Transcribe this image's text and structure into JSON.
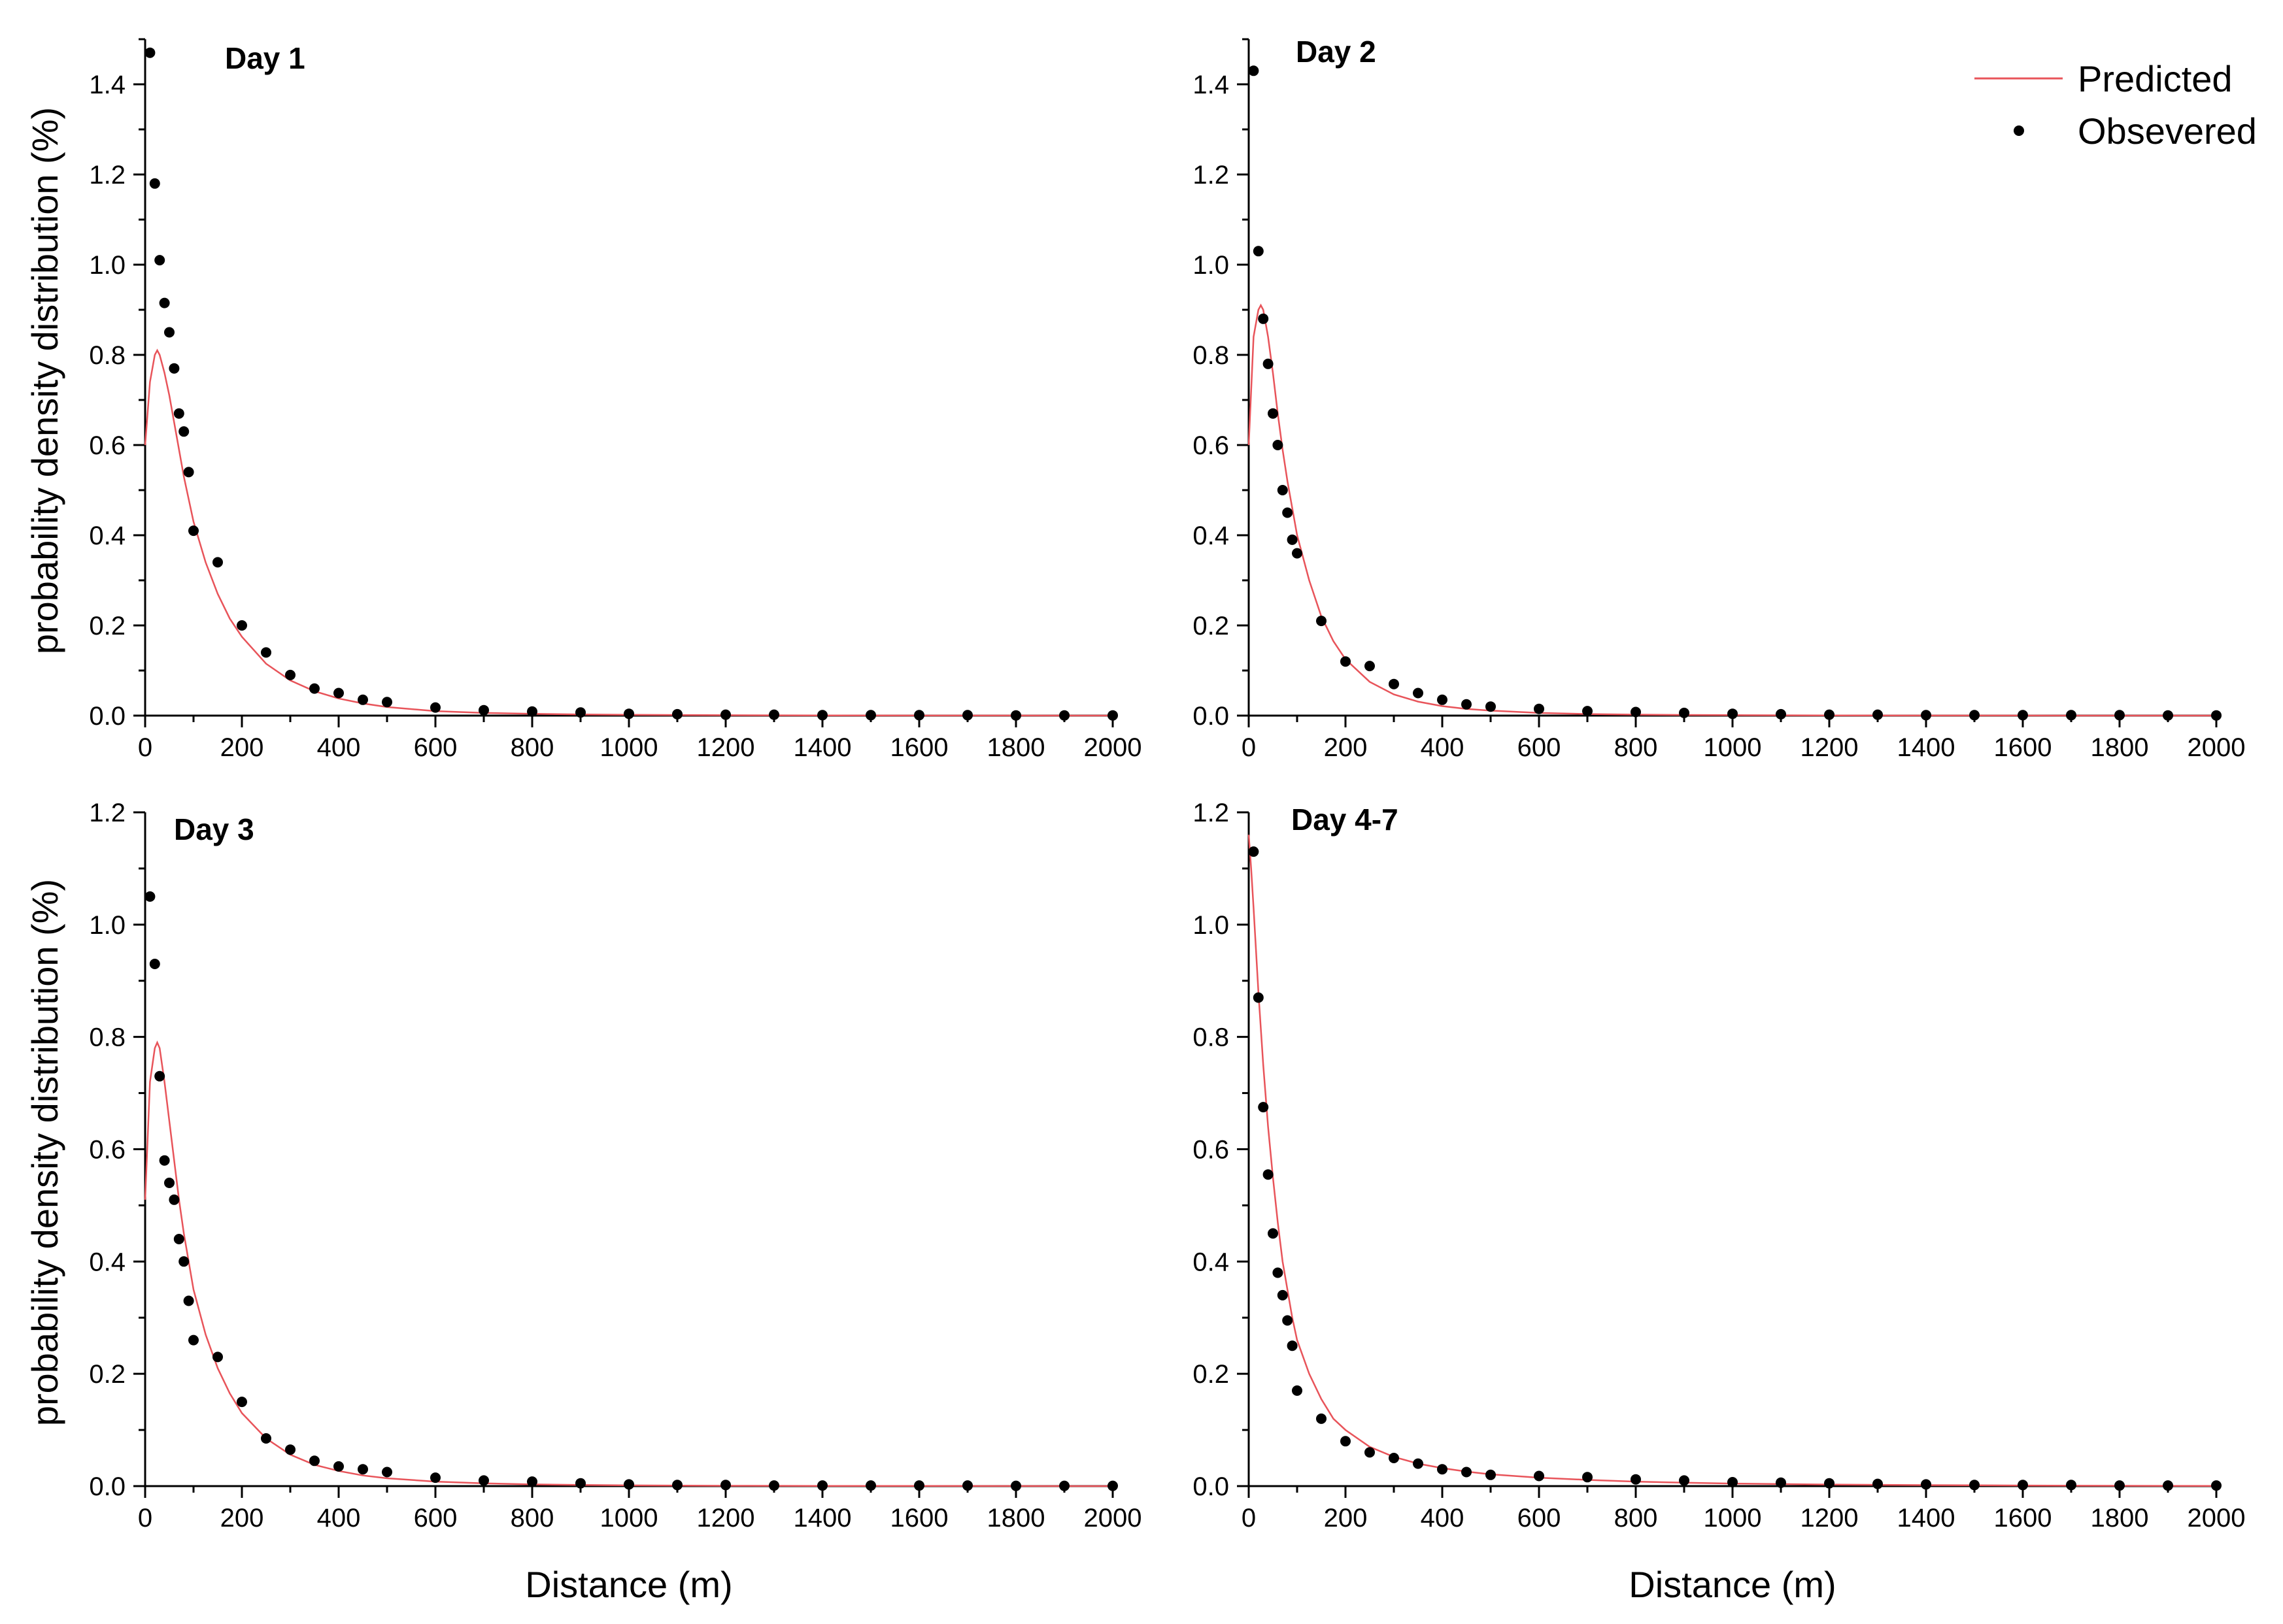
{
  "figure": {
    "legend": {
      "predicted_label": "Predicted",
      "observed_label": "Obsevered",
      "placement": "top-right of Day 2 panel"
    },
    "shared_ylabel": "probability density distribution (%)",
    "shared_xlabel": "Distance (m)"
  },
  "colors": {
    "predicted_line": "#e8545a",
    "observed_point": "#000000",
    "axis": "#000000"
  },
  "chart_data": [
    {
      "type": "scatter",
      "panel_label": "Day 1",
      "xlabel": "",
      "ylabel": "probability density distribution (%)",
      "xlim": [
        0,
        2000
      ],
      "ylim": [
        0,
        1.5
      ],
      "x_ticks": [
        0,
        200,
        400,
        600,
        800,
        1000,
        1200,
        1400,
        1600,
        1800,
        2000
      ],
      "y_ticks": [
        0.0,
        0.2,
        0.4,
        0.6,
        0.8,
        1.0,
        1.2,
        1.4
      ],
      "y_tick_labels": [
        "0.0",
        "0.2",
        "0.4",
        "0.6",
        "0.8",
        "1.0",
        "1.2",
        "1.4"
      ],
      "grid": false,
      "series": [
        {
          "name": "Predicted",
          "type": "line",
          "x": [
            0,
            10,
            20,
            25,
            30,
            40,
            50,
            60,
            70,
            80,
            90,
            100,
            125,
            150,
            175,
            200,
            250,
            300,
            350,
            400,
            450,
            500,
            600,
            700,
            800,
            900,
            1000,
            1200,
            1400,
            1600,
            1800,
            2000
          ],
          "y": [
            0.6,
            0.74,
            0.8,
            0.81,
            0.8,
            0.76,
            0.71,
            0.65,
            0.59,
            0.53,
            0.48,
            0.43,
            0.34,
            0.27,
            0.215,
            0.175,
            0.115,
            0.078,
            0.054,
            0.038,
            0.027,
            0.019,
            0.01,
            0.006,
            0.004,
            0.0025,
            0.0017,
            0.0008,
            0.0004,
            0.0002,
            0.0001,
            0.0
          ]
        },
        {
          "name": "Obsevered",
          "type": "scatter",
          "x": [
            10,
            20,
            30,
            40,
            50,
            60,
            70,
            80,
            90,
            100,
            150,
            200,
            250,
            300,
            350,
            400,
            450,
            500,
            600,
            700,
            800,
            900,
            1000,
            1100,
            1200,
            1300,
            1400,
            1500,
            1600,
            1700,
            1800,
            1900,
            2000
          ],
          "y": [
            1.47,
            1.18,
            1.01,
            0.915,
            0.85,
            0.77,
            0.67,
            0.63,
            0.54,
            0.41,
            0.34,
            0.2,
            0.14,
            0.09,
            0.06,
            0.05,
            0.035,
            0.03,
            0.018,
            0.012,
            0.009,
            0.007,
            0.004,
            0.003,
            0.002,
            0.002,
            0.001,
            0.001,
            0.001,
            0.001,
            0.0005,
            0.0005,
            0.0005
          ]
        }
      ]
    },
    {
      "type": "scatter",
      "panel_label": "Day 2",
      "xlabel": "",
      "ylabel": "",
      "xlim": [
        0,
        2000
      ],
      "ylim": [
        0,
        1.5
      ],
      "x_ticks": [
        0,
        200,
        400,
        600,
        800,
        1000,
        1200,
        1400,
        1600,
        1800,
        2000
      ],
      "y_ticks": [
        0.0,
        0.2,
        0.4,
        0.6,
        0.8,
        1.0,
        1.2,
        1.4
      ],
      "y_tick_labels": [
        "0.0",
        "0.2",
        "0.4",
        "0.6",
        "0.8",
        "1.0",
        "1.2",
        "1.4"
      ],
      "grid": false,
      "series": [
        {
          "name": "Predicted",
          "type": "line",
          "x": [
            0,
            10,
            20,
            25,
            30,
            40,
            50,
            60,
            70,
            80,
            90,
            100,
            125,
            150,
            175,
            200,
            250,
            300,
            350,
            400,
            450,
            500,
            600,
            700,
            800,
            900,
            1000,
            1200,
            1400,
            1600,
            1800,
            2000
          ],
          "y": [
            0.6,
            0.84,
            0.9,
            0.91,
            0.9,
            0.84,
            0.76,
            0.67,
            0.59,
            0.52,
            0.46,
            0.4,
            0.3,
            0.22,
            0.165,
            0.125,
            0.075,
            0.047,
            0.031,
            0.021,
            0.015,
            0.011,
            0.006,
            0.0035,
            0.0022,
            0.0014,
            0.001,
            0.0005,
            0.0002,
            0.0001,
            0.0,
            0.0
          ]
        },
        {
          "name": "Obsevered",
          "type": "scatter",
          "x": [
            10,
            20,
            30,
            40,
            50,
            60,
            70,
            80,
            90,
            100,
            150,
            200,
            250,
            300,
            350,
            400,
            450,
            500,
            600,
            700,
            800,
            900,
            1000,
            1100,
            1200,
            1300,
            1400,
            1500,
            1600,
            1700,
            1800,
            1900,
            2000
          ],
          "y": [
            1.43,
            1.03,
            0.88,
            0.78,
            0.67,
            0.6,
            0.5,
            0.45,
            0.39,
            0.36,
            0.21,
            0.12,
            0.11,
            0.07,
            0.05,
            0.035,
            0.025,
            0.02,
            0.015,
            0.01,
            0.008,
            0.006,
            0.004,
            0.003,
            0.002,
            0.002,
            0.001,
            0.001,
            0.001,
            0.001,
            0.001,
            0.0005,
            0.0005
          ]
        }
      ]
    },
    {
      "type": "scatter",
      "panel_label": "Day 3",
      "xlabel": "Distance (m)",
      "ylabel": "probability density distribution (%)",
      "xlim": [
        0,
        2000
      ],
      "ylim": [
        0,
        1.2
      ],
      "x_ticks": [
        0,
        200,
        400,
        600,
        800,
        1000,
        1200,
        1400,
        1600,
        1800,
        2000
      ],
      "y_ticks": [
        0.0,
        0.2,
        0.4,
        0.6,
        0.8,
        1.0,
        1.2
      ],
      "y_tick_labels": [
        "0.0",
        "0.2",
        "0.4",
        "0.6",
        "0.8",
        "1.0",
        "1.2"
      ],
      "grid": false,
      "series": [
        {
          "name": "Predicted",
          "type": "line",
          "x": [
            0,
            10,
            20,
            25,
            30,
            40,
            50,
            60,
            70,
            80,
            90,
            100,
            125,
            150,
            175,
            200,
            250,
            300,
            350,
            400,
            450,
            500,
            600,
            700,
            800,
            900,
            1000,
            1200,
            1400,
            1600,
            1800,
            2000
          ],
          "y": [
            0.51,
            0.72,
            0.78,
            0.79,
            0.78,
            0.72,
            0.65,
            0.58,
            0.51,
            0.45,
            0.4,
            0.35,
            0.27,
            0.21,
            0.165,
            0.13,
            0.085,
            0.056,
            0.038,
            0.027,
            0.019,
            0.014,
            0.008,
            0.005,
            0.003,
            0.002,
            0.0013,
            0.0006,
            0.0003,
            0.0002,
            0.0001,
            0.0
          ]
        },
        {
          "name": "Obsevered",
          "type": "scatter",
          "x": [
            10,
            20,
            30,
            40,
            50,
            60,
            70,
            80,
            90,
            100,
            150,
            200,
            250,
            300,
            350,
            400,
            450,
            500,
            600,
            700,
            800,
            900,
            1000,
            1100,
            1200,
            1300,
            1400,
            1500,
            1600,
            1700,
            1800,
            1900,
            2000
          ],
          "y": [
            1.05,
            0.93,
            0.73,
            0.58,
            0.54,
            0.51,
            0.44,
            0.4,
            0.33,
            0.26,
            0.23,
            0.15,
            0.085,
            0.065,
            0.045,
            0.035,
            0.03,
            0.025,
            0.015,
            0.01,
            0.008,
            0.005,
            0.003,
            0.002,
            0.002,
            0.001,
            0.001,
            0.001,
            0.001,
            0.001,
            0.0005,
            0.0005,
            0.0005
          ]
        }
      ]
    },
    {
      "type": "scatter",
      "panel_label": "Day 4-7",
      "xlabel": "Distance (m)",
      "ylabel": "",
      "xlim": [
        0,
        2000
      ],
      "ylim": [
        0,
        1.2
      ],
      "x_ticks": [
        0,
        200,
        400,
        600,
        800,
        1000,
        1200,
        1400,
        1600,
        1800,
        2000
      ],
      "y_ticks": [
        0.0,
        0.2,
        0.4,
        0.6,
        0.8,
        1.0,
        1.2
      ],
      "y_tick_labels": [
        "0.0",
        "0.2",
        "0.4",
        "0.6",
        "0.8",
        "1.0",
        "1.2"
      ],
      "grid": false,
      "series": [
        {
          "name": "Predicted",
          "type": "line",
          "x": [
            0,
            5,
            10,
            20,
            30,
            40,
            50,
            60,
            70,
            80,
            90,
            100,
            125,
            150,
            175,
            200,
            250,
            300,
            350,
            400,
            450,
            500,
            600,
            700,
            800,
            900,
            1000,
            1200,
            1400,
            1600,
            1800,
            2000
          ],
          "y": [
            1.16,
            1.1,
            1.03,
            0.88,
            0.75,
            0.64,
            0.55,
            0.47,
            0.4,
            0.35,
            0.3,
            0.26,
            0.2,
            0.155,
            0.12,
            0.1,
            0.07,
            0.052,
            0.04,
            0.032,
            0.026,
            0.021,
            0.015,
            0.011,
            0.008,
            0.006,
            0.0045,
            0.0028,
            0.0017,
            0.001,
            0.0006,
            0.0003
          ]
        },
        {
          "name": "Obsevered",
          "type": "scatter",
          "x": [
            10,
            20,
            30,
            40,
            50,
            60,
            70,
            80,
            90,
            100,
            150,
            200,
            250,
            300,
            350,
            400,
            450,
            500,
            600,
            700,
            800,
            900,
            1000,
            1100,
            1200,
            1300,
            1400,
            1500,
            1600,
            1700,
            1800,
            1900,
            2000
          ],
          "y": [
            1.13,
            0.87,
            0.675,
            0.555,
            0.45,
            0.38,
            0.34,
            0.295,
            0.25,
            0.17,
            0.12,
            0.08,
            0.06,
            0.05,
            0.04,
            0.03,
            0.025,
            0.02,
            0.018,
            0.016,
            0.012,
            0.01,
            0.007,
            0.006,
            0.005,
            0.004,
            0.003,
            0.002,
            0.002,
            0.002,
            0.001,
            0.001,
            0.001
          ]
        }
      ]
    }
  ]
}
